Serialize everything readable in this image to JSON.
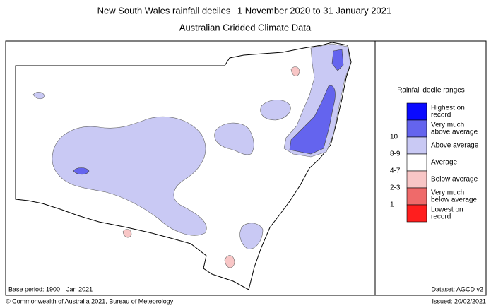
{
  "header": {
    "title": "New South Wales rainfall deciles",
    "period": "1 November 2020 to 31 January 2021",
    "subtitle": "Australian Gridded Climate Data"
  },
  "legend": {
    "title": "Rainfall decile ranges",
    "items": [
      {
        "label": [
          "Highest on",
          "record"
        ],
        "color": "#0a0aff"
      },
      {
        "label": [
          "Very much",
          "above average"
        ],
        "range": "10",
        "color": "#6464ee"
      },
      {
        "label": [
          "Above average"
        ],
        "range": "8-9",
        "color": "#c9c9f4"
      },
      {
        "label": [
          "Average"
        ],
        "range": "4-7",
        "color": "#ffffff"
      },
      {
        "label": [
          "Below average"
        ],
        "range": "2-3",
        "color": "#f8c6c6"
      },
      {
        "label": [
          "Very much",
          "below average"
        ],
        "range": "1",
        "color": "#ef6a6a"
      },
      {
        "label": [
          "Lowest on",
          "record"
        ],
        "color": "#ff1e1e"
      }
    ]
  },
  "footer": {
    "base_period": "Base period: 1900—Jan 2021",
    "dataset": "Dataset: AGCD v2",
    "copyright": "© Commonwealth of Australia 2021, Bureau of Meteorology",
    "issued": "Issued: 20/02/2021"
  }
}
